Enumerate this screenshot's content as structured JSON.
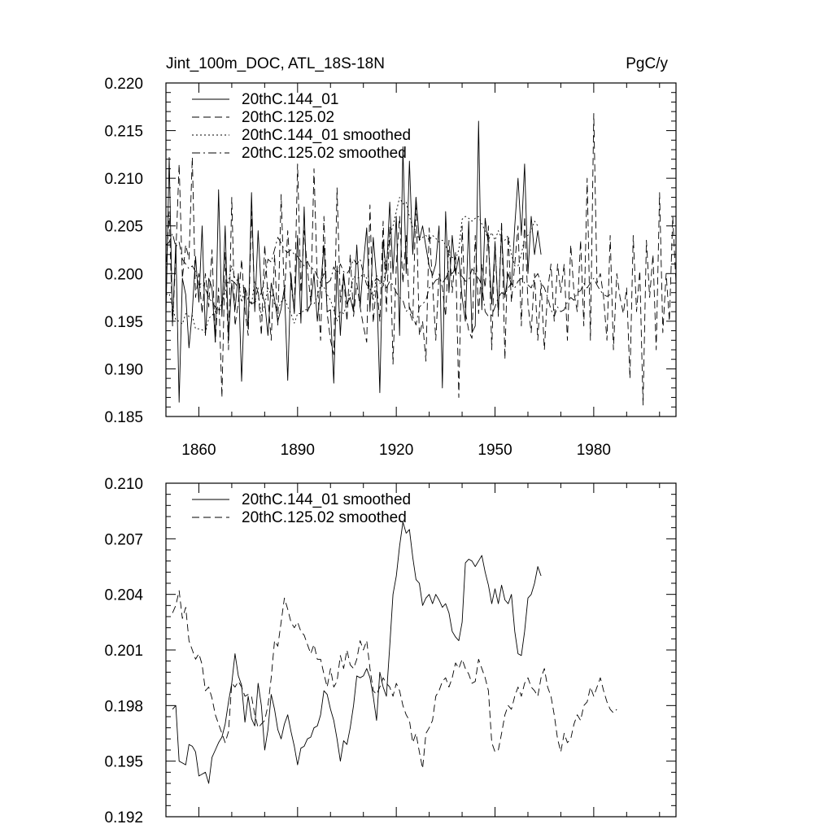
{
  "chart_data": [
    {
      "type": "line",
      "title_left": "Jint_100m_DOC, ATL_18S-18N",
      "title_right": "PgC/y",
      "xlim": [
        1850,
        2005
      ],
      "ylim": [
        0.185,
        0.22
      ],
      "x_ticks": [
        1860,
        1890,
        1920,
        1950,
        1980
      ],
      "x_tick_labels": [
        "1860",
        "1890",
        "1920",
        "1950",
        "1980"
      ],
      "y_ticks": [
        0.185,
        0.19,
        0.195,
        0.2,
        0.205,
        0.21,
        0.215,
        0.22
      ],
      "y_tick_labels": [
        "0.185",
        "0.190",
        "0.195",
        "0.200",
        "0.205",
        "0.210",
        "0.215",
        "0.220"
      ],
      "legend": [
        "20thC.144_01",
        "20thC.125.02",
        "20thC.144_01 smoothed",
        "20thC.125.02 smoothed"
      ],
      "series": [
        {
          "name": "20thC.144_01",
          "style": "solid",
          "x_start": 1850,
          "values": [
            0.1955,
            0.2122,
            0.1948,
            0.2032,
            0.1865,
            0.1995,
            0.1978,
            0.1922,
            0.196,
            0.2018,
            0.197,
            0.205,
            0.1935,
            0.1995,
            0.1985,
            0.1928,
            0.2088,
            0.1955,
            0.205,
            0.1932,
            0.199,
            0.1962,
            0.2,
            0.1887,
            0.1985,
            0.1942,
            0.2085,
            0.196,
            0.2045,
            0.198,
            0.197,
            0.1935,
            0.199,
            0.1973,
            0.195,
            0.1963,
            0.1985,
            0.1888,
            0.2,
            0.1958,
            0.204,
            0.1948,
            0.207,
            0.196,
            0.1968,
            0.2,
            0.195,
            0.1985,
            0.203,
            0.196,
            0.1962,
            0.1885,
            0.2008,
            0.1935,
            0.2,
            0.1968,
            0.1975,
            0.196,
            0.203,
            0.1965,
            0.201,
            0.2048,
            0.196,
            0.2038,
            0.1995,
            0.1875,
            0.2035,
            0.2,
            0.2075,
            0.2,
            0.206,
            0.1935,
            0.2133,
            0.2,
            0.2118,
            0.202,
            0.208,
            0.2035,
            0.205,
            0.2028,
            0.2008,
            0.1998,
            0.201,
            0.205,
            0.188,
            0.2065,
            0.198,
            0.204,
            0.2,
            0.2018,
            0.1975,
            0.195,
            0.2055,
            0.1938,
            0.1945,
            0.216,
            0.1962,
            0.2058,
            0.203,
            0.1968,
            0.203,
            0.196,
            0.2045,
            0.1975,
            0.2,
            0.1988,
            0.205,
            0.21,
            0.204,
            0.2115,
            0.2,
            0.206,
            0.202,
            0.2045,
            0.202
          ],
          "x_end": 1967
        },
        {
          "name": "20thC.125.02",
          "style": "dashed",
          "x_start": 1850,
          "values": [
            0.2,
            0.2065,
            0.1945,
            0.202,
            0.2115,
            0.1995,
            0.203,
            0.2015,
            0.2122,
            0.1975,
            0.2,
            0.1958,
            0.2,
            0.1965,
            0.2025,
            0.1928,
            0.1985,
            0.187,
            0.2022,
            0.192,
            0.208,
            0.1945,
            0.197,
            0.2015,
            0.1962,
            0.1935,
            0.2065,
            0.197,
            0.1985,
            0.1935,
            0.203,
            0.1975,
            0.193,
            0.202,
            0.1945,
            0.2083,
            0.1975,
            0.2045,
            0.199,
            0.196,
            0.2115,
            0.198,
            0.2045,
            0.2005,
            0.197,
            0.211,
            0.199,
            0.193,
            0.206,
            0.1958,
            0.193,
            0.1915,
            0.209,
            0.197,
            0.2,
            0.195,
            0.202,
            0.1955,
            0.199,
            0.1965,
            0.1945,
            0.1928,
            0.2072,
            0.1948,
            0.199,
            0.195,
            0.2055,
            0.196,
            0.205,
            0.1905,
            0.201,
            0.206,
            0.199,
            0.204,
            0.196,
            0.195,
            0.208,
            0.1935,
            0.195,
            0.1908,
            0.2048,
            0.199,
            0.193,
            0.2,
            0.1985,
            0.1955,
            0.2035,
            0.198,
            0.2022,
            0.187,
            0.205,
            0.196,
            0.194,
            0.1932,
            0.204,
            0.1958,
            0.201,
            0.1985,
            0.205,
            0.192,
            0.2035,
            0.1955,
            0.2055,
            0.191,
            0.204,
            0.197,
            0.201,
            0.205,
            0.1945,
            0.206,
            0.1968,
            0.1938,
            0.2,
            0.193,
            0.199,
            0.192,
            0.1982,
            0.201,
            0.195,
            0.201,
            0.198,
            0.201,
            0.193,
            0.203,
            0.198,
            0.196,
            0.2035,
            0.1945,
            0.21,
            0.193,
            0.2168,
            0.199,
            0.2,
            0.1975,
            0.193,
            0.204,
            0.192,
            0.2,
            0.1975,
            0.1958,
            0.1985,
            0.189,
            0.204,
            0.196,
            0.2003,
            0.1862,
            0.2035,
            0.1975,
            0.202,
            0.192,
            0.2085,
            0.1938,
            0.2,
            0.195,
            0.206,
            0.199,
            0.19,
            0.198,
            0.2032,
            0.1985
          ],
          "x_end": 2005
        },
        {
          "name": "20thC.144_01 smoothed",
          "style": "dotted",
          "x_start": 1850,
          "values": [
            0.1978,
            0.1979,
            0.1965,
            0.1951,
            0.195,
            0.1947,
            0.1958,
            0.1955,
            0.1956,
            0.1942,
            0.1942,
            0.1941,
            0.1938,
            0.1953,
            0.1956,
            0.196,
            0.1962,
            0.197,
            0.198,
            0.1992,
            0.2008,
            0.1995,
            0.1992,
            0.197,
            0.1985,
            0.1972,
            0.1968,
            0.1992,
            0.198,
            0.1956,
            0.1967,
            0.1985,
            0.1978,
            0.1968,
            0.1962,
            0.197,
            0.1975,
            0.1965,
            0.1958,
            0.1948,
            0.1958,
            0.1958,
            0.1962,
            0.1962,
            0.1968,
            0.1968,
            0.1976,
            0.1988,
            0.1986,
            0.1978,
            0.1972,
            0.1962,
            0.195,
            0.196,
            0.1958,
            0.1968,
            0.198,
            0.1997,
            0.1995,
            0.1996,
            0.2,
            0.1995,
            0.1985,
            0.1972,
            0.1998,
            0.199,
            0.1985,
            0.2012,
            0.204,
            0.205,
            0.2065,
            0.208,
            0.2073,
            0.2075,
            0.206,
            0.2048,
            0.2045,
            0.2035,
            0.2038,
            0.204,
            0.2035,
            0.204,
            0.2037,
            0.2033,
            0.2035,
            0.203,
            0.202,
            0.2017,
            0.2015,
            0.2025,
            0.2057,
            0.206,
            0.2058,
            0.2055,
            0.2058,
            0.206,
            0.2052,
            0.2045,
            0.2035,
            0.2043,
            0.2035,
            0.2045,
            0.2037,
            0.2035,
            0.204,
            0.202,
            0.2008,
            0.2008,
            0.202,
            0.2038,
            0.204,
            0.2045,
            0.2055,
            0.205
          ],
          "x_end": 1963
        },
        {
          "name": "20thC.125.02 smoothed",
          "style": "dashdot",
          "x_start": 1850,
          "values": [
            0.203,
            0.2033,
            0.2042,
            0.2028,
            0.2033,
            0.2015,
            0.201,
            0.2005,
            0.2008,
            0.2002,
            0.1988,
            0.199,
            0.1984,
            0.1975,
            0.197,
            0.1965,
            0.196,
            0.1965,
            0.1992,
            0.199,
            0.1993,
            0.199,
            0.1985,
            0.1986,
            0.1985,
            0.1975,
            0.1968,
            0.197,
            0.1972,
            0.198,
            0.1995,
            0.2015,
            0.2012,
            0.2025,
            0.2038,
            0.2032,
            0.2025,
            0.2022,
            0.2025,
            0.202,
            0.2018,
            0.2013,
            0.2008,
            0.2013,
            0.2005,
            0.2005,
            0.1997,
            0.199,
            0.2,
            0.199,
            0.1993,
            0.2007,
            0.2,
            0.201,
            0.2002,
            0.2,
            0.2005,
            0.2015,
            0.201,
            0.2015,
            0.2,
            0.1988,
            0.1986,
            0.199,
            0.1995,
            0.1992,
            0.199,
            0.1985,
            0.1992,
            0.1988,
            0.198,
            0.1975,
            0.1972,
            0.196,
            0.1965,
            0.1955,
            0.1946,
            0.1965,
            0.1968,
            0.1972,
            0.1985,
            0.1988,
            0.1993,
            0.1995,
            0.199,
            0.1995,
            0.2003,
            0.2,
            0.2005,
            0.2,
            0.1997,
            0.1992,
            0.1993,
            0.2005,
            0.2,
            0.1995,
            0.1988,
            0.196,
            0.1955,
            0.1956,
            0.1965,
            0.1975,
            0.198,
            0.1978,
            0.1985,
            0.199,
            0.1985,
            0.1992,
            0.1995,
            0.199,
            0.1988,
            0.1985,
            0.1995,
            0.2,
            0.199,
            0.1985,
            0.1975,
            0.1962,
            0.1955,
            0.1965,
            0.196,
            0.1962,
            0.197,
            0.1975,
            0.1972,
            0.198,
            0.1982,
            0.199,
            0.1985,
            0.199,
            0.1995,
            0.1988,
            0.1982,
            0.1978,
            0.1976,
            0.1978
          ],
          "x_end": 1988
        }
      ]
    },
    {
      "type": "line",
      "xlim": [
        1850,
        2005
      ],
      "ylim": [
        0.192,
        0.21
      ],
      "x_ticks": [
        1860,
        1890,
        1920,
        1950,
        1980
      ],
      "x_tick_labels": [],
      "y_ticks": [
        0.192,
        0.195,
        0.198,
        0.201,
        0.204,
        0.207,
        0.21
      ],
      "y_tick_labels": [
        "0.192",
        "0.195",
        "0.198",
        "0.201",
        "0.204",
        "0.207",
        "0.210"
      ],
      "legend": [
        "20thC.144_01 smoothed",
        "20thC.125.02 smoothed"
      ],
      "series": [
        {
          "name": "20thC.144_01 smoothed",
          "style": "solid",
          "x_start": 1852,
          "values": [
            0.1978,
            0.198,
            0.195,
            0.1949,
            0.1948,
            0.1959,
            0.1958,
            0.1955,
            0.1942,
            0.1943,
            0.1944,
            0.1938,
            0.1952,
            0.1956,
            0.196,
            0.1963,
            0.197,
            0.1982,
            0.1992,
            0.2008,
            0.1996,
            0.1991,
            0.1971,
            0.1985,
            0.1973,
            0.1969,
            0.1992,
            0.198,
            0.1956,
            0.1967,
            0.1986,
            0.1978,
            0.1967,
            0.1962,
            0.197,
            0.1975,
            0.1966,
            0.1958,
            0.1948,
            0.1957,
            0.1958,
            0.1962,
            0.1963,
            0.1968,
            0.1969,
            0.1975,
            0.1988,
            0.1986,
            0.1978,
            0.1972,
            0.1962,
            0.195,
            0.1961,
            0.1959,
            0.1968,
            0.198,
            0.1996,
            0.1995,
            0.1996,
            0.2,
            0.1995,
            0.1985,
            0.1972,
            0.1998,
            0.199,
            0.1985,
            0.2012,
            0.204,
            0.205,
            0.2066,
            0.2079,
            0.2073,
            0.2075,
            0.206,
            0.2048,
            0.2046,
            0.2034,
            0.2038,
            0.204,
            0.2035,
            0.204,
            0.2037,
            0.2033,
            0.2035,
            0.203,
            0.202,
            0.2017,
            0.2015,
            0.2025,
            0.2057,
            0.2059,
            0.2058,
            0.2055,
            0.2058,
            0.2061,
            0.2052,
            0.2045,
            0.2035,
            0.2043,
            0.2035,
            0.2045,
            0.2037,
            0.2035,
            0.204,
            0.202,
            0.2008,
            0.2007,
            0.202,
            0.2038,
            0.204,
            0.2046,
            0.2055,
            0.205
          ]
        },
        {
          "name": "20thC.125.02 smoothed",
          "style": "dashed",
          "x_start": 1852,
          "values": [
            0.203,
            0.2034,
            0.2042,
            0.2027,
            0.2033,
            0.2015,
            0.201,
            0.2005,
            0.2008,
            0.2002,
            0.1988,
            0.199,
            0.1984,
            0.1975,
            0.197,
            0.1965,
            0.196,
            0.1966,
            0.1992,
            0.199,
            0.1993,
            0.199,
            0.1985,
            0.1986,
            0.1985,
            0.1975,
            0.1968,
            0.197,
            0.1972,
            0.198,
            0.1995,
            0.2015,
            0.2012,
            0.2025,
            0.2038,
            0.2032,
            0.2025,
            0.2022,
            0.2025,
            0.202,
            0.2018,
            0.2013,
            0.2008,
            0.2013,
            0.2005,
            0.2005,
            0.1997,
            0.199,
            0.2,
            0.199,
            0.1993,
            0.2007,
            0.2,
            0.201,
            0.2002,
            0.2,
            0.2005,
            0.2015,
            0.201,
            0.2015,
            0.2,
            0.1988,
            0.1986,
            0.199,
            0.1995,
            0.1992,
            0.199,
            0.1985,
            0.1992,
            0.1988,
            0.198,
            0.1975,
            0.1972,
            0.196,
            0.1965,
            0.1955,
            0.1946,
            0.1965,
            0.1968,
            0.1972,
            0.1985,
            0.1988,
            0.1993,
            0.1995,
            0.199,
            0.1995,
            0.2003,
            0.2,
            0.2005,
            0.2,
            0.1997,
            0.1992,
            0.1993,
            0.2005,
            0.2,
            0.1995,
            0.1988,
            0.196,
            0.1955,
            0.1956,
            0.1965,
            0.1975,
            0.198,
            0.1978,
            0.1985,
            0.199,
            0.1985,
            0.1992,
            0.1995,
            0.199,
            0.1988,
            0.1985,
            0.1995,
            0.2,
            0.199,
            0.1985,
            0.1975,
            0.1962,
            0.1955,
            0.1965,
            0.196,
            0.1962,
            0.197,
            0.1975,
            0.1972,
            0.198,
            0.1982,
            0.199,
            0.1985,
            0.199,
            0.1995,
            0.1988,
            0.1982,
            0.1978,
            0.1976,
            0.1978
          ]
        }
      ]
    }
  ]
}
